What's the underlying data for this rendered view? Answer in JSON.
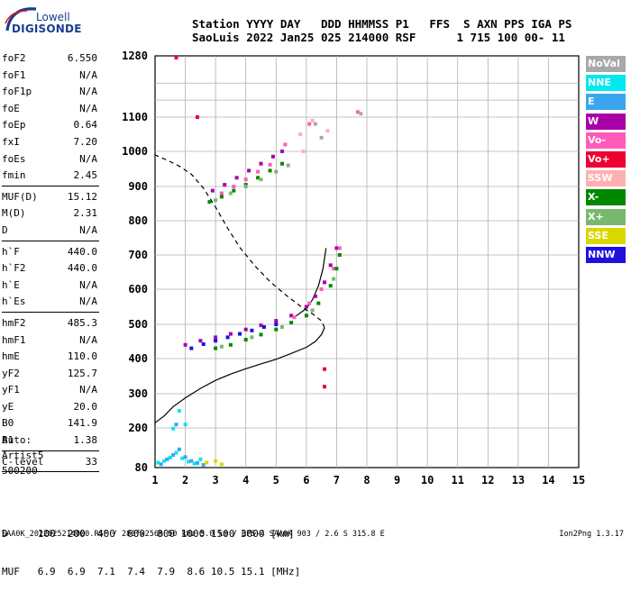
{
  "logo": {
    "top": "Lowell",
    "bottom": "DIGISONDE"
  },
  "header": {
    "line1": "Station YYYY DAY   DDD HHMMSS P1   FFS  S AXN PPS IGA PS",
    "line2": "SaoLuis 2022 Jan25 025 214000 RSF      1 715 100 00- 11"
  },
  "params_groups": [
    [
      {
        "label": "foF2",
        "value": "6.550"
      },
      {
        "label": "foF1",
        "value": "N/A"
      },
      {
        "label": "foF1p",
        "value": "N/A"
      },
      {
        "label": "foE",
        "value": "N/A"
      },
      {
        "label": "foEp",
        "value": "0.64"
      },
      {
        "label": "fxI",
        "value": "7.20"
      },
      {
        "label": "foEs",
        "value": "N/A"
      },
      {
        "label": "fmin",
        "value": "2.45"
      }
    ],
    [
      {
        "label": "MUF(D)",
        "value": "15.12"
      },
      {
        "label": "M(D)",
        "value": "2.31"
      },
      {
        "label": "D",
        "value": "N/A"
      }
    ],
    [
      {
        "label": "h`F",
        "value": "440.0"
      },
      {
        "label": "h`F2",
        "value": "440.0"
      },
      {
        "label": "h`E",
        "value": "N/A"
      },
      {
        "label": "h`Es",
        "value": "N/A"
      }
    ],
    [
      {
        "label": "hmF2",
        "value": "485.3"
      },
      {
        "label": "hmF1",
        "value": "N/A"
      },
      {
        "label": "hmE",
        "value": "110.0"
      },
      {
        "label": "yF2",
        "value": "125.7"
      },
      {
        "label": "yF1",
        "value": "N/A"
      },
      {
        "label": "yE",
        "value": "20.0"
      },
      {
        "label": "B0",
        "value": "141.9"
      },
      {
        "label": "B1",
        "value": "1.38"
      }
    ],
    [
      {
        "label": "C-level",
        "value": "33"
      }
    ]
  ],
  "auto": {
    "line1": "Auto:",
    "line2": "Artist5",
    "line3": "500200"
  },
  "legend": [
    {
      "label": "NoVal",
      "color": "#a8a8a8"
    },
    {
      "label": "NNE",
      "color": "#00e8f0"
    },
    {
      "label": "E",
      "color": "#3aa6ee"
    },
    {
      "label": "W",
      "color": "#a800a8"
    },
    {
      "label": "Vo-",
      "color": "#ff5ab8"
    },
    {
      "label": "Vo+",
      "color": "#ee0030"
    },
    {
      "label": "SSW",
      "color": "#ffb0b0"
    },
    {
      "label": "X-",
      "color": "#008800"
    },
    {
      "label": "X+",
      "color": "#7ab870"
    },
    {
      "label": "SSE",
      "color": "#d8d800"
    },
    {
      "label": "NNW",
      "color": "#2010e0"
    }
  ],
  "muf_table": {
    "d_label": "D",
    "d_values": [
      "100",
      "200",
      "400",
      "600",
      "800",
      "1000",
      "1500",
      "3000"
    ],
    "d_unit": "[km]",
    "muf_label": "MUF",
    "muf_values": [
      "6.9",
      "6.9",
      "7.1",
      "7.4",
      "7.9",
      "8.6",
      "10.5",
      "15.1"
    ],
    "muf_unit": "[MHz]"
  },
  "footer": {
    "left": "SAA0K_2022025214000.RSF / 280fx256h 50 kHz 5.0 km / DPS-4 SAA0K 903 / 2.6 S 315.8 E",
    "right": "Ion2Png 1.3.17"
  },
  "chart_data": {
    "type": "scatter",
    "xlabel": "",
    "ylabel": "",
    "xlim": [
      1,
      15
    ],
    "ylim": [
      80,
      1280
    ],
    "x_ticks": [
      1,
      2,
      3,
      4,
      5,
      6,
      7,
      8,
      9,
      10,
      11,
      12,
      13,
      14,
      15
    ],
    "y_ticks": [
      80,
      200,
      300,
      400,
      500,
      600,
      700,
      800,
      900,
      1000,
      1100,
      1280
    ],
    "grid": true,
    "ne_profile": [
      [
        1,
        215
      ],
      [
        1.3,
        235
      ],
      [
        1.6,
        262
      ],
      [
        2,
        288
      ],
      [
        2.5,
        315
      ],
      [
        3,
        338
      ],
      [
        3.5,
        356
      ],
      [
        4,
        371
      ],
      [
        4.5,
        385
      ],
      [
        5,
        398
      ],
      [
        5.5,
        415
      ],
      [
        6,
        433
      ],
      [
        6.3,
        450
      ],
      [
        6.5,
        470
      ],
      [
        6.6,
        490
      ]
    ],
    "ne_profile_upper": [
      [
        6.6,
        490
      ],
      [
        6.5,
        510
      ],
      [
        6.2,
        530
      ],
      [
        5.8,
        552
      ],
      [
        5.3,
        585
      ],
      [
        4.8,
        622
      ],
      [
        4.3,
        668
      ],
      [
        3.8,
        722
      ],
      [
        3.4,
        778
      ],
      [
        3.0,
        840
      ],
      [
        2.6,
        895
      ],
      [
        2.2,
        935
      ],
      [
        1.8,
        958
      ],
      [
        1.4,
        975
      ],
      [
        1.0,
        990
      ]
    ],
    "fitted_trace": [
      [
        5.6,
        520
      ],
      [
        6.0,
        545
      ],
      [
        6.2,
        570
      ],
      [
        6.4,
        610
      ],
      [
        6.55,
        660
      ],
      [
        6.65,
        720
      ]
    ],
    "series": [
      {
        "name": "W",
        "color": "#a800a8",
        "points": [
          [
            2.0,
            440
          ],
          [
            2.5,
            452
          ],
          [
            3.0,
            462
          ],
          [
            3.5,
            472
          ],
          [
            4.0,
            485
          ],
          [
            4.5,
            497
          ],
          [
            5.0,
            510
          ],
          [
            5.5,
            525
          ],
          [
            6.0,
            550
          ],
          [
            6.3,
            580
          ],
          [
            6.6,
            620
          ],
          [
            6.8,
            670
          ],
          [
            7.0,
            720
          ],
          [
            2.9,
            888
          ],
          [
            3.3,
            905
          ],
          [
            3.7,
            925
          ],
          [
            4.1,
            945
          ],
          [
            4.5,
            965
          ],
          [
            4.9,
            985
          ],
          [
            5.2,
            1000
          ]
        ]
      },
      {
        "name": "NNW",
        "color": "#2010e0",
        "points": [
          [
            2.2,
            430
          ],
          [
            2.6,
            442
          ],
          [
            3.0,
            452
          ],
          [
            3.4,
            462
          ],
          [
            3.8,
            472
          ],
          [
            4.2,
            482
          ],
          [
            4.6,
            492
          ],
          [
            5.0,
            500
          ]
        ]
      },
      {
        "name": "Vo-",
        "color": "#ff5ab8",
        "points": [
          [
            3.2,
            880
          ],
          [
            3.6,
            900
          ],
          [
            4.0,
            920
          ],
          [
            4.4,
            942
          ],
          [
            4.8,
            962
          ],
          [
            5.6,
            520
          ],
          [
            6.1,
            560
          ],
          [
            6.5,
            600
          ],
          [
            6.9,
            660
          ],
          [
            7.1,
            720
          ],
          [
            5.3,
            1020
          ],
          [
            6.1,
            1080
          ],
          [
            7.7,
            1115
          ]
        ]
      },
      {
        "name": "X-",
        "color": "#008800",
        "points": [
          [
            2.8,
            855
          ],
          [
            3.2,
            870
          ],
          [
            3.6,
            888
          ],
          [
            4.0,
            905
          ],
          [
            4.4,
            925
          ],
          [
            4.8,
            945
          ],
          [
            5.2,
            965
          ],
          [
            3.0,
            430
          ],
          [
            3.5,
            440
          ],
          [
            4.0,
            455
          ],
          [
            4.5,
            470
          ],
          [
            5.0,
            485
          ],
          [
            5.5,
            505
          ],
          [
            6.0,
            525
          ],
          [
            6.4,
            560
          ],
          [
            6.8,
            610
          ],
          [
            7.0,
            660
          ],
          [
            7.1,
            700
          ]
        ]
      },
      {
        "name": "X+",
        "color": "#7ab870",
        "points": [
          [
            3.0,
            860
          ],
          [
            3.5,
            880
          ],
          [
            4.0,
            900
          ],
          [
            4.5,
            920
          ],
          [
            5.0,
            942
          ],
          [
            5.4,
            960
          ],
          [
            3.2,
            435
          ],
          [
            4.2,
            462
          ],
          [
            5.2,
            492
          ],
          [
            6.2,
            540
          ],
          [
            6.9,
            630
          ]
        ]
      },
      {
        "name": "NNE",
        "color": "#00e8f0",
        "points": [
          [
            1.1,
            95
          ],
          [
            1.3,
            100
          ],
          [
            1.5,
            110
          ],
          [
            1.7,
            125
          ],
          [
            1.9,
            108
          ],
          [
            2.1,
            98
          ],
          [
            2.3,
            92
          ],
          [
            2.5,
            105
          ],
          [
            2.7,
            95
          ],
          [
            1.6,
            198
          ],
          [
            2.0,
            210
          ],
          [
            1.8,
            250
          ]
        ]
      },
      {
        "name": "E",
        "color": "#3aa6ee",
        "points": [
          [
            1.2,
            90
          ],
          [
            1.4,
            105
          ],
          [
            1.6,
            118
          ],
          [
            1.8,
            135
          ],
          [
            2.0,
            112
          ],
          [
            2.2,
            100
          ],
          [
            2.4,
            94
          ],
          [
            2.6,
            88
          ],
          [
            1.7,
            210
          ]
        ]
      },
      {
        "name": "SSW",
        "color": "#ffb0b0",
        "points": [
          [
            5.8,
            1050
          ],
          [
            5.9,
            1000
          ],
          [
            6.2,
            1090
          ],
          [
            6.7,
            1060
          ]
        ]
      },
      {
        "name": "NoVal",
        "color": "#a8a8a8",
        "points": [
          [
            6.3,
            1080
          ],
          [
            6.5,
            1040
          ],
          [
            7.8,
            1110
          ]
        ]
      },
      {
        "name": "Vo+",
        "color": "#ee0030",
        "points": [
          [
            2.4,
            1100
          ],
          [
            1.7,
            1275
          ],
          [
            6.6,
            370
          ],
          [
            6.6,
            320
          ]
        ]
      },
      {
        "name": "SSE",
        "color": "#d8d800",
        "points": [
          [
            2.7,
            95
          ],
          [
            3.0,
            100
          ],
          [
            3.2,
            90
          ]
        ]
      }
    ]
  }
}
